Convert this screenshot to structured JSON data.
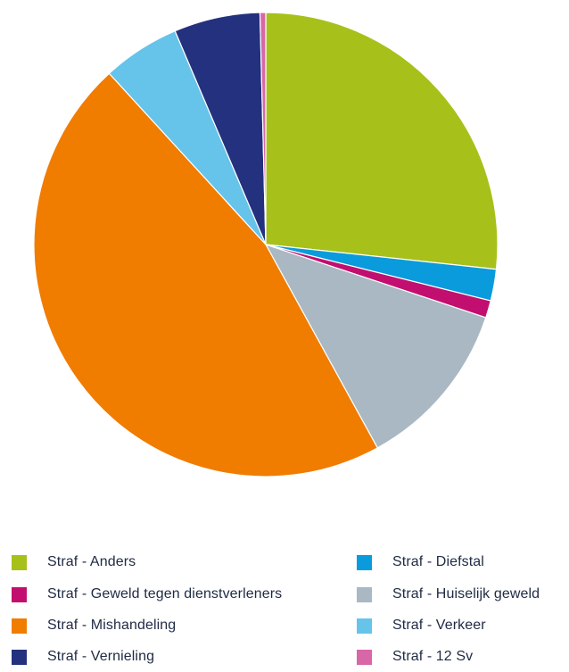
{
  "chart_data": {
    "type": "pie",
    "start": "12 o'clock",
    "direction": "clockwise",
    "slices": [
      {
        "label": "Straf - Anders",
        "value": 26.7,
        "color": "#a8c01a"
      },
      {
        "label": "Straf - Diefstal",
        "value": 2.2,
        "color": "#0a9bdc"
      },
      {
        "label": "Straf - Geweld tegen dienstverleners",
        "value": 1.2,
        "color": "#c20f6f"
      },
      {
        "label": "Straf - Huiselijk geweld",
        "value": 11.9,
        "color": "#a9b8c3"
      },
      {
        "label": "Straf - Mishandeling",
        "value": 46.2,
        "color": "#f07c00"
      },
      {
        "label": "Straf - Verkeer",
        "value": 5.4,
        "color": "#66c3ea"
      },
      {
        "label": "Straf - Vernieling",
        "value": 6.0,
        "color": "#23317e"
      },
      {
        "label": "Straf - 12 Sv",
        "value": 0.4,
        "color": "#d867a8"
      }
    ],
    "legend": {
      "placement": "bottom",
      "columns": [
        [
          "Straf - Anders",
          "Straf - Geweld tegen dienstverleners",
          "Straf - Mishandeling",
          "Straf - Vernieling"
        ],
        [
          "Straf - Diefstal",
          "Straf - Huiselijk geweld",
          "Straf - Verkeer",
          "Straf - 12 Sv"
        ]
      ]
    }
  }
}
